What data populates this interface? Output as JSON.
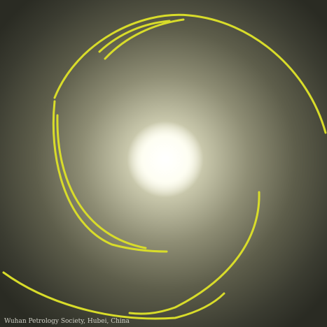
{
  "image": {
    "caption": "Wuhan Petrology Society, Hubei, China"
  }
}
